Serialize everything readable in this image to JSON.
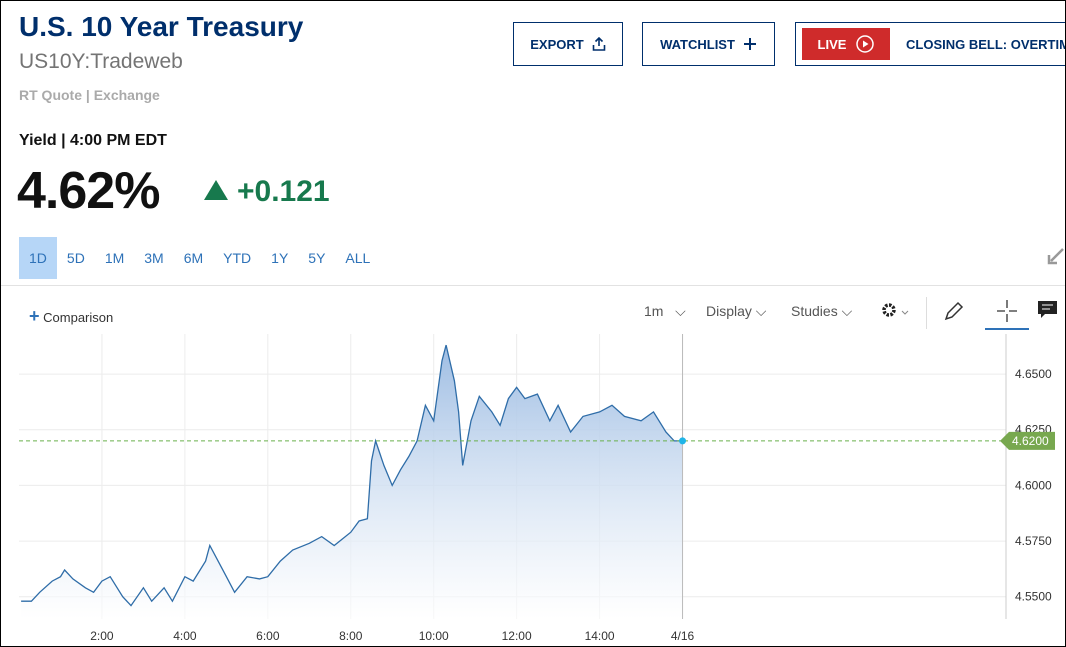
{
  "header": {
    "title": "U.S. 10 Year Treasury",
    "symbol": "US10Y:Tradeweb",
    "source": "RT Quote | Exchange"
  },
  "buttons": {
    "export": "EXPORT",
    "watchlist": "WATCHLIST",
    "live": "LIVE",
    "closing_bell": "CLOSING BELL: OVERTIME"
  },
  "quote": {
    "label": "Yield | 4:00 PM EDT",
    "value": "4.62%",
    "change": "+0.121"
  },
  "ranges": [
    "1D",
    "5D",
    "1M",
    "3M",
    "6M",
    "YTD",
    "1Y",
    "5Y",
    "ALL"
  ],
  "toolbar": {
    "comparison": "Comparison",
    "interval": "1m",
    "display": "Display",
    "studies": "Studies"
  },
  "chart_data": {
    "type": "area",
    "color": "#2f6da8",
    "x": [
      0.05,
      0.3,
      0.5,
      0.8,
      1.0,
      1.1,
      1.3,
      1.6,
      1.8,
      2.0,
      2.2,
      2.5,
      2.7,
      3.0,
      3.2,
      3.5,
      3.7,
      4.0,
      4.2,
      4.5,
      4.6,
      4.8,
      5.0,
      5.2,
      5.5,
      5.8,
      6.0,
      6.3,
      6.6,
      7.0,
      7.3,
      7.6,
      8.0,
      8.2,
      8.4,
      8.5,
      8.6,
      8.8,
      9.0,
      9.2,
      9.4,
      9.6,
      9.8,
      10.0,
      10.2,
      10.3,
      10.5,
      10.6,
      10.7,
      10.9,
      11.1,
      11.4,
      11.6,
      11.8,
      12.0,
      12.2,
      12.5,
      12.8,
      13.0,
      13.3,
      13.6,
      14.0,
      14.3,
      14.6,
      15.0,
      15.3,
      15.6,
      15.8,
      16.0
    ],
    "values": [
      4.548,
      4.548,
      4.552,
      4.557,
      4.559,
      4.562,
      4.558,
      4.554,
      4.552,
      4.557,
      4.559,
      4.55,
      4.546,
      4.554,
      4.548,
      4.554,
      4.548,
      4.559,
      4.557,
      4.566,
      4.573,
      4.566,
      4.559,
      4.552,
      4.559,
      4.558,
      4.559,
      4.566,
      4.571,
      4.574,
      4.577,
      4.573,
      4.579,
      4.584,
      4.585,
      4.611,
      4.62,
      4.609,
      4.6,
      4.607,
      4.613,
      4.62,
      4.636,
      4.629,
      4.656,
      4.663,
      4.647,
      4.633,
      4.609,
      4.629,
      4.64,
      4.633,
      4.627,
      4.639,
      4.644,
      4.639,
      4.641,
      4.629,
      4.636,
      4.624,
      4.631,
      4.633,
      4.636,
      4.631,
      4.629,
      4.633,
      4.624,
      4.62,
      4.62
    ],
    "xlim": [
      0,
      23.8
    ],
    "xticks": [
      {
        "value": 2,
        "label": "2:00"
      },
      {
        "value": 4,
        "label": "4:00"
      },
      {
        "value": 6,
        "label": "6:00"
      },
      {
        "value": 8,
        "label": "8:00"
      },
      {
        "value": 10,
        "label": "10:00"
      },
      {
        "value": 12,
        "label": "12:00"
      },
      {
        "value": 14,
        "label": "14:00"
      },
      {
        "value": 16,
        "label": "4/16"
      }
    ],
    "ylim": [
      4.54,
      4.668
    ],
    "yticks": [
      {
        "value": 4.55,
        "label": "4.5500"
      },
      {
        "value": 4.575,
        "label": "4.5750"
      },
      {
        "value": 4.6,
        "label": "4.6000"
      },
      {
        "value": 4.625,
        "label": "4.6250"
      },
      {
        "value": 4.65,
        "label": "4.6500"
      }
    ],
    "last": {
      "value": 4.62,
      "label": "4.6200"
    },
    "grid": true
  }
}
